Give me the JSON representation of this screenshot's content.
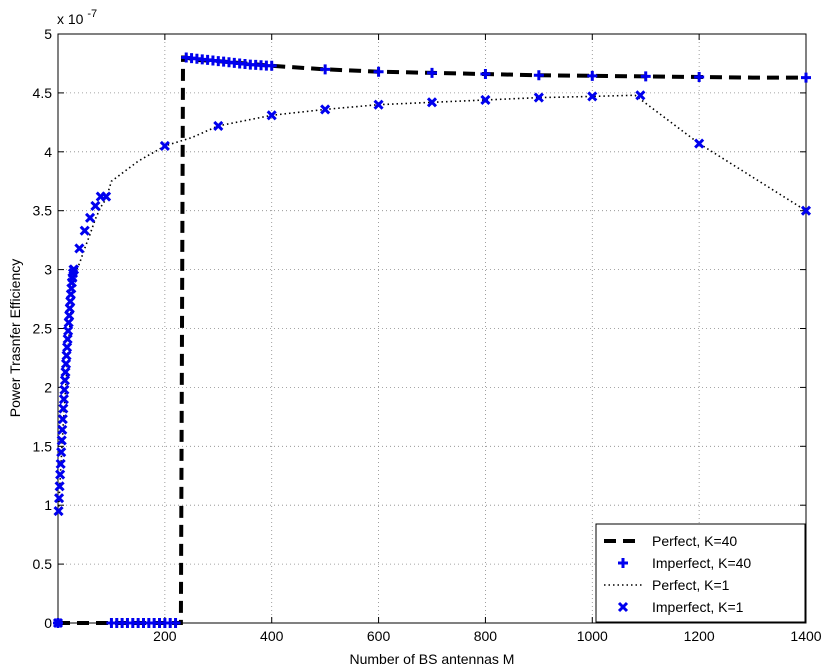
{
  "chart_data": {
    "type": "line",
    "title": "",
    "xlabel": "Number of BS antennas M",
    "ylabel": "Power Trasnfer Efficiency",
    "y_exponent_label": "x 10",
    "y_exponent_power": "-7",
    "xlim": [
      0,
      1400
    ],
    "ylim": [
      0,
      5
    ],
    "x_ticks": [
      200,
      400,
      600,
      800,
      1000,
      1200,
      1400
    ],
    "x_tick_labels": [
      "200",
      "400",
      "600",
      "800",
      "1000",
      "1200",
      "1400"
    ],
    "y_ticks": [
      0,
      0.5,
      1,
      1.5,
      2,
      2.5,
      3,
      3.5,
      4,
      4.5,
      5
    ],
    "y_tick_labels": [
      "0",
      "0.5",
      "1",
      "1.5",
      "2",
      "2.5",
      "3",
      "3.5",
      "4",
      "4.5",
      "5"
    ],
    "grid": true,
    "legend_position": "bottom-right",
    "series": [
      {
        "name": "Perfect, K=40",
        "style": "dashed-line",
        "color": "#000000",
        "x": [
          0,
          230,
          234,
          240,
          260,
          300,
          400,
          500,
          600,
          700,
          800,
          900,
          1000,
          1100,
          1200,
          1300,
          1400
        ],
        "y": [
          0,
          0,
          4.8,
          4.8,
          4.78,
          4.77,
          4.73,
          4.7,
          4.68,
          4.67,
          4.66,
          4.65,
          4.645,
          4.64,
          4.635,
          4.63,
          4.63
        ]
      },
      {
        "name": "Imperfect, K=40",
        "style": "plus-markers",
        "color": "#0000ee",
        "x": [
          0,
          100,
          110,
          120,
          130,
          140,
          150,
          160,
          170,
          180,
          190,
          200,
          210,
          220,
          240,
          250,
          260,
          270,
          280,
          290,
          300,
          310,
          320,
          330,
          340,
          350,
          360,
          370,
          380,
          390,
          400,
          500,
          600,
          700,
          800,
          900,
          1000,
          1100,
          1200,
          1400
        ],
        "y": [
          0,
          0,
          0,
          0,
          0,
          0,
          0,
          0,
          0,
          0,
          0,
          0,
          0,
          0,
          4.8,
          4.795,
          4.79,
          4.785,
          4.78,
          4.775,
          4.77,
          4.765,
          4.76,
          4.755,
          4.75,
          4.745,
          4.74,
          4.738,
          4.735,
          4.732,
          4.73,
          4.7,
          4.68,
          4.67,
          4.66,
          4.65,
          4.645,
          4.64,
          4.635,
          4.63
        ]
      },
      {
        "name": "Perfect, K=1",
        "style": "dotted-line",
        "color": "#000000",
        "x": [
          1,
          5,
          10,
          15,
          20,
          25,
          30,
          40,
          50,
          60,
          70,
          80,
          90,
          100,
          150,
          200,
          250,
          300,
          400,
          500,
          600,
          700,
          800,
          900,
          1000,
          1080,
          1200,
          1400
        ],
        "y": [
          0.95,
          1.3,
          1.7,
          2.05,
          2.4,
          2.7,
          2.95,
          3.05,
          3.18,
          3.3,
          3.43,
          3.53,
          3.6,
          3.75,
          3.92,
          4.05,
          4.12,
          4.22,
          4.31,
          4.36,
          4.4,
          4.42,
          4.44,
          4.46,
          4.47,
          4.48,
          4.07,
          3.5
        ]
      },
      {
        "name": "Imperfect, K=1",
        "style": "x-markers",
        "color": "#0000ee",
        "x": [
          0,
          1,
          2,
          3,
          4,
          5,
          6,
          7,
          8,
          9,
          10,
          11,
          12,
          13,
          14,
          15,
          16,
          17,
          18,
          19,
          20,
          21,
          22,
          23,
          24,
          25,
          26,
          27,
          28,
          29,
          30,
          40,
          50,
          60,
          70,
          80,
          90,
          200,
          300,
          400,
          500,
          600,
          700,
          800,
          900,
          1000,
          1090,
          1200,
          1400
        ],
        "y": [
          0,
          0.95,
          1.06,
          1.16,
          1.26,
          1.35,
          1.45,
          1.55,
          1.64,
          1.73,
          1.82,
          1.9,
          1.98,
          2.06,
          2.13,
          2.2,
          2.27,
          2.34,
          2.41,
          2.48,
          2.55,
          2.61,
          2.67,
          2.73,
          2.79,
          2.84,
          2.89,
          2.93,
          2.97,
          3.0,
          3.0,
          3.18,
          3.33,
          3.44,
          3.54,
          3.62,
          3.62,
          4.05,
          4.22,
          4.31,
          4.36,
          4.4,
          4.42,
          4.44,
          4.46,
          4.47,
          4.48,
          4.07,
          3.5
        ]
      }
    ]
  }
}
